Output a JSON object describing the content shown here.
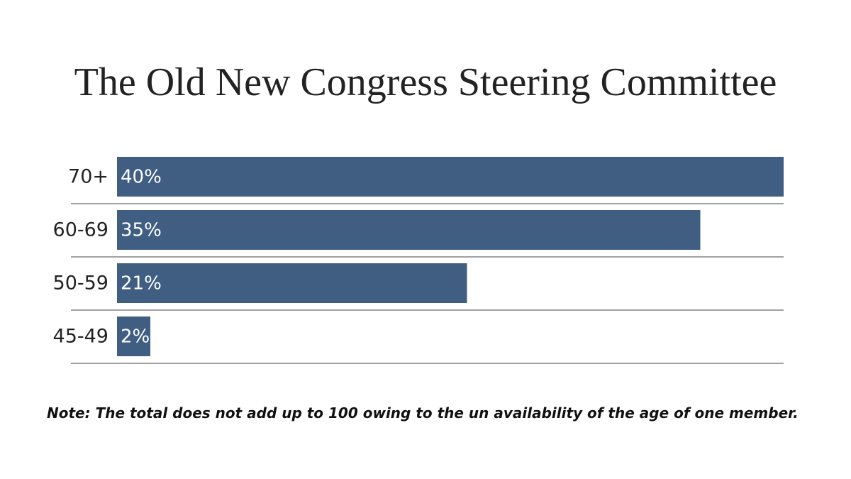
{
  "chart_data": {
    "type": "hbar",
    "title": "The Old New Congress Steering Committee",
    "categories": [
      "70+",
      "60-69",
      "50-59",
      "45-49"
    ],
    "values": [
      40,
      35,
      21,
      2
    ],
    "value_labels": [
      "40%",
      "35%",
      "21%",
      "2%"
    ],
    "color": "#3f5e82",
    "note": "Note: The total does not add up to 100 owing to the un availability of the age of one member."
  }
}
